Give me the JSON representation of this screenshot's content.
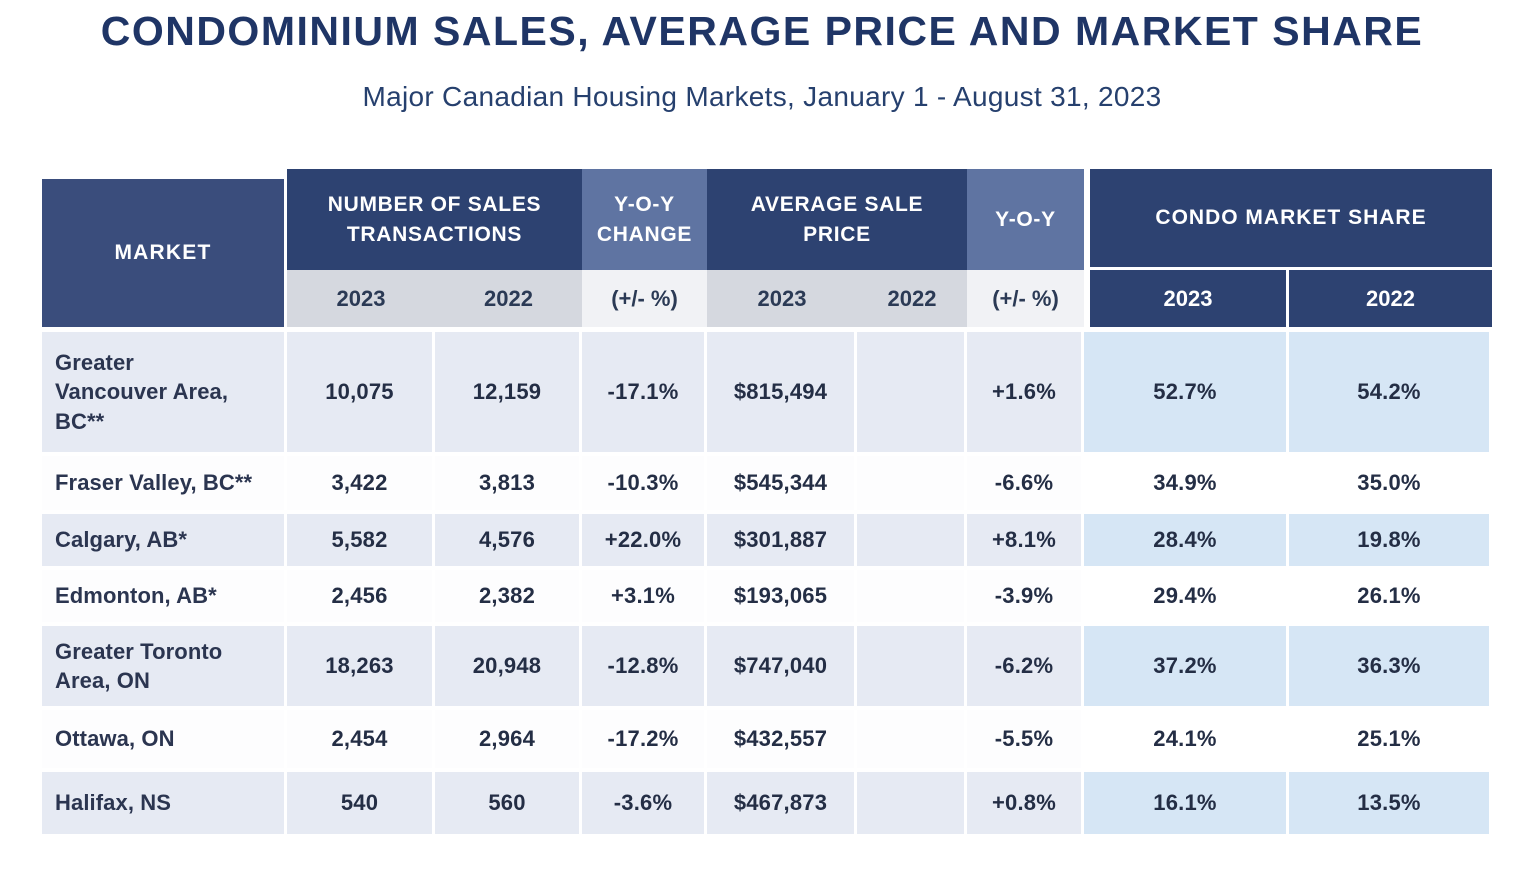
{
  "title": "CONDOMINIUM SALES, AVERAGE PRICE AND MARKET SHARE",
  "subtitle": "Major Canadian Housing Markets, January 1 - August 31, 2023",
  "colors": {
    "header_navy": "#2d4271",
    "header_navy_market": "#3a4d7c",
    "header_slate": "#5f74a2",
    "subheader_gray": "#d5d8df",
    "subheader_white": "#f1f2f5",
    "row_striped": "#e6eaf3",
    "row_plain": "#fdfdfe",
    "share_striped": "#d6e6f5",
    "share_plain": "#ffffff",
    "title_text": "#1f3566",
    "data_text": "#242e45"
  },
  "table": {
    "header": {
      "market": "MARKET",
      "sales": "NUMBER OF SALES TRANSACTIONS",
      "sales_yoy_change": "Y-O-Y CHANGE",
      "avg_price": "AVERAGE SALE PRICE",
      "price_yoy": "Y-O-Y",
      "condo_share": "CONDO MARKET SHARE",
      "sub": {
        "sales_2023": "2023",
        "sales_2022": "2022",
        "sales_yoy_unit": "(+/- %)",
        "price_2023": "2023",
        "price_2022": "2022",
        "price_yoy_unit": "(+/- %)",
        "share_2023": "2023",
        "share_2022": "2022"
      }
    },
    "rows": [
      {
        "market": "Greater\nVancouver Area,\nBC**",
        "sales_2023": "10,075",
        "sales_2022": "12,159",
        "sales_yoy_change": "-17.1%",
        "price_2023": "$815,494",
        "price_2022": "",
        "price_yoy": "+1.6%",
        "share_2023": "52.7%",
        "share_2022": "54.2%"
      },
      {
        "market": "Fraser Valley, BC**",
        "sales_2023": "3,422",
        "sales_2022": "3,813",
        "sales_yoy_change": "-10.3%",
        "price_2023": "$545,344",
        "price_2022": "",
        "price_yoy": "-6.6%",
        "share_2023": "34.9%",
        "share_2022": "35.0%"
      },
      {
        "market": "Calgary, AB*",
        "sales_2023": "5,582",
        "sales_2022": "4,576",
        "sales_yoy_change": "+22.0%",
        "price_2023": "$301,887",
        "price_2022": "",
        "price_yoy": "+8.1%",
        "share_2023": "28.4%",
        "share_2022": "19.8%"
      },
      {
        "market": "Edmonton, AB*",
        "sales_2023": "2,456",
        "sales_2022": "2,382",
        "sales_yoy_change": "+3.1%",
        "price_2023": "$193,065",
        "price_2022": "",
        "price_yoy": "-3.9%",
        "share_2023": "29.4%",
        "share_2022": "26.1%"
      },
      {
        "market": "Greater Toronto\nArea, ON",
        "sales_2023": "18,263",
        "sales_2022": "20,948",
        "sales_yoy_change": "-12.8%",
        "price_2023": "$747,040",
        "price_2022": "",
        "price_yoy": "-6.2%",
        "share_2023": "37.2%",
        "share_2022": "36.3%"
      },
      {
        "market": "Ottawa, ON",
        "sales_2023": "2,454",
        "sales_2022": "2,964",
        "sales_yoy_change": "-17.2%",
        "price_2023": "$432,557",
        "price_2022": "",
        "price_yoy": "-5.5%",
        "share_2023": "24.1%",
        "share_2022": "25.1%"
      },
      {
        "market": "Halifax, NS",
        "sales_2023": "540",
        "sales_2022": "560",
        "sales_yoy_change": "-3.6%",
        "price_2023": "$467,873",
        "price_2022": "",
        "price_yoy": "+0.8%",
        "share_2023": "16.1%",
        "share_2022": "13.5%"
      }
    ]
  },
  "chart_data": {
    "type": "table",
    "title": "CONDOMINIUM SALES, AVERAGE PRICE AND MARKET SHARE",
    "subtitle": "Major Canadian Housing Markets, January 1 - August 31, 2023",
    "columns": [
      "Market",
      "Number of Sales Transactions 2023",
      "Number of Sales Transactions 2022",
      "Sales Y-O-Y Change (+/- %)",
      "Average Sale Price 2023",
      "Average Sale Price 2022",
      "Price Y-O-Y (+/- %)",
      "Condo Market Share 2023",
      "Condo Market Share 2022"
    ],
    "rows": [
      [
        "Greater Vancouver Area, BC**",
        "10,075",
        "12,159",
        "-17.1%",
        "$815,494",
        "",
        "+1.6%",
        "52.7%",
        "54.2%"
      ],
      [
        "Fraser Valley, BC**",
        "3,422",
        "3,813",
        "-10.3%",
        "$545,344",
        "",
        "-6.6%",
        "34.9%",
        "35.0%"
      ],
      [
        "Calgary, AB*",
        "5,582",
        "4,576",
        "+22.0%",
        "$301,887",
        "",
        "+8.1%",
        "28.4%",
        "19.8%"
      ],
      [
        "Edmonton, AB*",
        "2,456",
        "2,382",
        "+3.1%",
        "$193,065",
        "",
        "-3.9%",
        "29.4%",
        "26.1%"
      ],
      [
        "Greater Toronto Area, ON",
        "18,263",
        "20,948",
        "-12.8%",
        "$747,040",
        "",
        "-6.2%",
        "37.2%",
        "36.3%"
      ],
      [
        "Ottawa, ON",
        "2,454",
        "2,964",
        "-17.2%",
        "$432,557",
        "",
        "-5.5%",
        "24.1%",
        "25.1%"
      ],
      [
        "Halifax, NS",
        "540",
        "560",
        "-3.6%",
        "$467,873",
        "",
        "+0.8%",
        "16.1%",
        "13.5%"
      ]
    ]
  }
}
